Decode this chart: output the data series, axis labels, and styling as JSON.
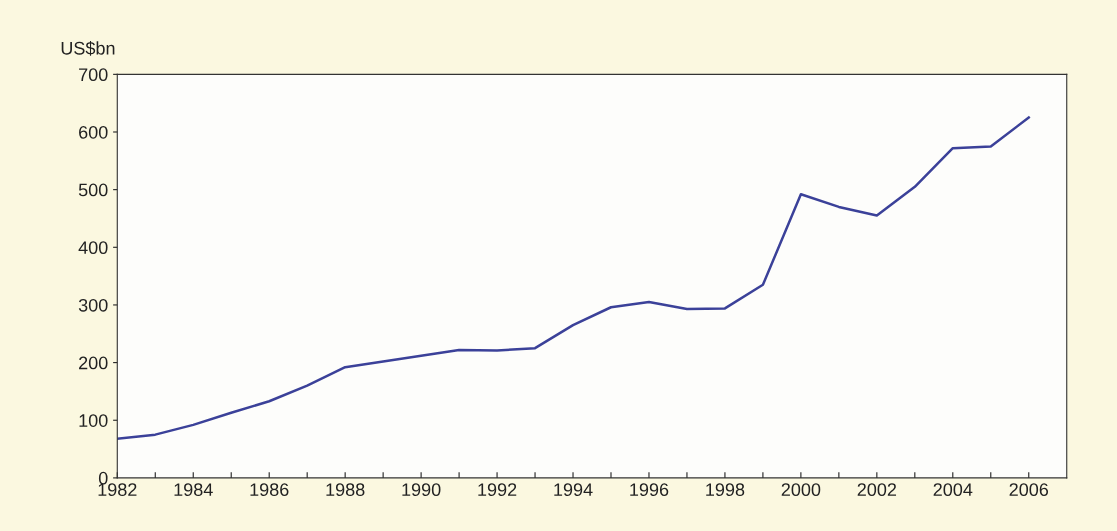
{
  "chart_data": {
    "type": "line",
    "ylabel": "US$bn",
    "x": [
      1982,
      1983,
      1984,
      1985,
      1986,
      1987,
      1988,
      1989,
      1990,
      1991,
      1992,
      1993,
      1994,
      1995,
      1996,
      1997,
      1998,
      1999,
      2000,
      2001,
      2002,
      2003,
      2004,
      2005,
      2006
    ],
    "series": [
      {
        "color": "#3b4199",
        "values": [
          68,
          75,
          92,
          113,
          133,
          160,
          192,
          202,
          212,
          222,
          221,
          225,
          265,
          296,
          305,
          293,
          294,
          335,
          492,
          470,
          455,
          505,
          572,
          575,
          625
        ]
      }
    ],
    "xlim": [
      1982,
      2007
    ],
    "xticks": [
      1982,
      {
        "value": 1983,
        "label": null
      },
      1984,
      {
        "value": 1985,
        "label": null
      },
      1986,
      {
        "value": 1987,
        "label": null
      },
      1988,
      {
        "value": 1989,
        "label": null
      },
      1990,
      {
        "value": 1991,
        "label": null
      },
      1992,
      {
        "value": 1993,
        "label": null
      },
      1994,
      {
        "value": 1995,
        "label": null
      },
      1996,
      {
        "value": 1997,
        "label": null
      },
      1998,
      {
        "value": 1999,
        "label": null
      },
      2000,
      {
        "value": 2001,
        "label": null
      },
      2002,
      {
        "value": 2003,
        "label": null
      },
      2004,
      {
        "value": 2005,
        "label": null
      },
      2006
    ],
    "ylim": [
      0,
      700
    ],
    "yticks": [
      0,
      100,
      200,
      300,
      400,
      500,
      600,
      700
    ],
    "grid": false,
    "legend": false,
    "marker": "none",
    "line_style": "solid"
  }
}
